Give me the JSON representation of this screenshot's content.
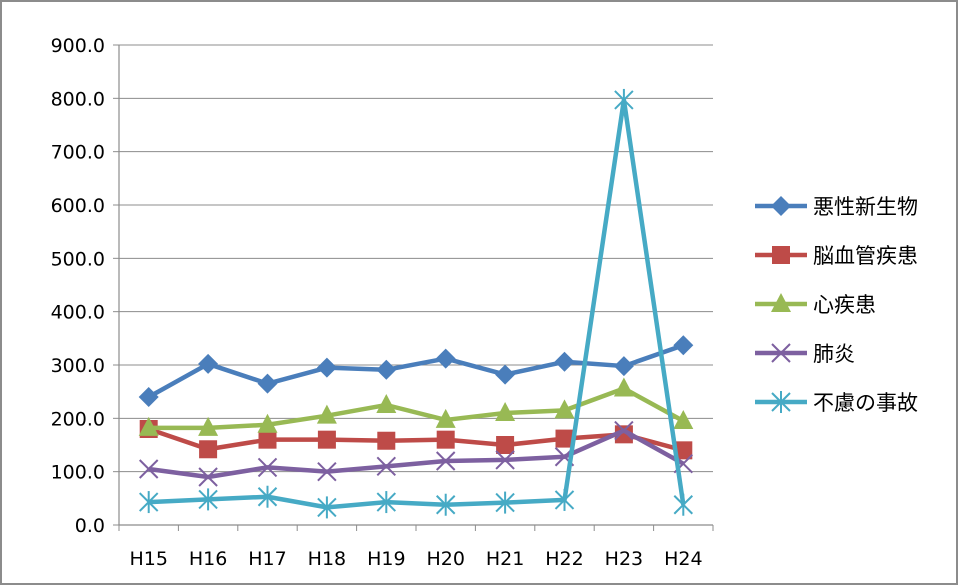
{
  "chart_data": {
    "type": "line",
    "title": "",
    "xlabel": "",
    "ylabel": "",
    "categories": [
      "H15",
      "H16",
      "H17",
      "H18",
      "H19",
      "H20",
      "H21",
      "H22",
      "H23",
      "H24"
    ],
    "ylim": [
      0,
      900
    ],
    "yticks": [
      "0.0",
      "100.0",
      "200.0",
      "300.0",
      "400.0",
      "500.0",
      "600.0",
      "700.0",
      "800.0",
      "900.0"
    ],
    "grid": true,
    "legend_position": "right",
    "series": [
      {
        "name": "悪性新生物",
        "color": "#4a7ebb",
        "marker": "diamond",
        "values": [
          240,
          302,
          265,
          295,
          291,
          312,
          282,
          306,
          298,
          337
        ]
      },
      {
        "name": "脳血管疾患",
        "color": "#be4b48",
        "marker": "square",
        "values": [
          180,
          142,
          160,
          160,
          158,
          160,
          150,
          162,
          170,
          140
        ]
      },
      {
        "name": "心疾患",
        "color": "#98b954",
        "marker": "triangle",
        "values": [
          182,
          182,
          188,
          205,
          225,
          197,
          210,
          215,
          256,
          195
        ]
      },
      {
        "name": "肺炎",
        "color": "#7d60a0",
        "marker": "x",
        "values": [
          105,
          90,
          108,
          100,
          110,
          120,
          122,
          128,
          177,
          115
        ]
      },
      {
        "name": "不慮の事故",
        "color": "#46aac5",
        "marker": "asterisk",
        "values": [
          43,
          48,
          53,
          33,
          43,
          38,
          42,
          47,
          797,
          38
        ]
      }
    ]
  }
}
